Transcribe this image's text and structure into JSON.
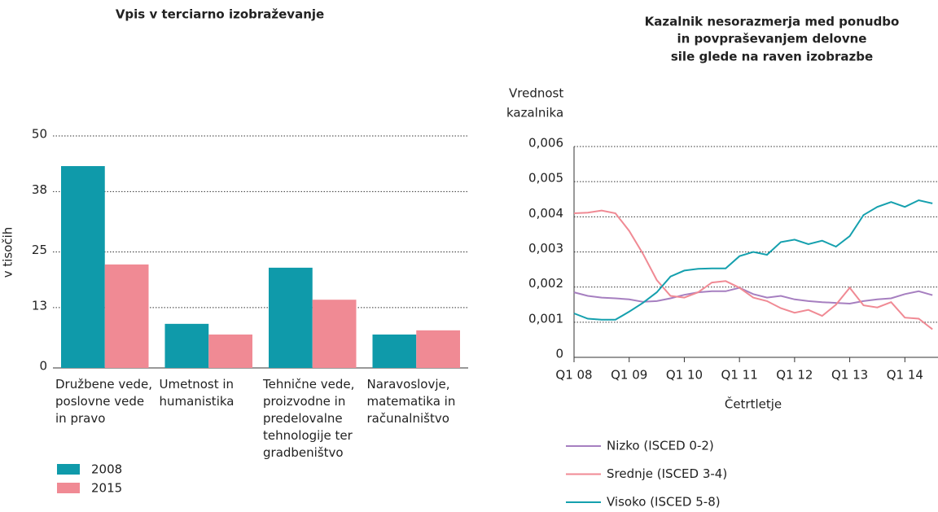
{
  "chart_data": [
    {
      "type": "bar",
      "title": "Vpis v terciarno izobraževanje",
      "y_label": "v tisočih",
      "categories": [
        "Družbene vede, poslovne vede in pravo",
        "Umetnost in humanistika",
        "Tehnične vede, proizvodne in predelovalne tehnologije ter gradbeništvo",
        "Naravoslovje, matematika in računalništvo"
      ],
      "series": [
        {
          "name": "2008",
          "color": "#0f9aaa",
          "values": [
            43.5,
            9.5,
            21.6,
            7.2
          ]
        },
        {
          "name": "2015",
          "color": "#f08a94",
          "values": [
            22.3,
            7.2,
            14.7,
            8.1
          ]
        }
      ],
      "ylim": [
        0,
        50
      ],
      "yticks": [
        0,
        13,
        25,
        38,
        50
      ],
      "grid": true
    },
    {
      "type": "line",
      "title": [
        "Kazalnik nesorazmerja med ponudbo",
        "in povpraševanjem delovne",
        "sile glede na raven izobrazbe"
      ],
      "y_label": [
        "Vrednost",
        "kazalnika"
      ],
      "x_label": "Četrtletje",
      "categories": [
        "Q1 08",
        null,
        null,
        null,
        "Q1 09",
        null,
        null,
        null,
        "Q1 10",
        null,
        null,
        null,
        "Q1 11",
        null,
        null,
        null,
        "Q1 12",
        null,
        null,
        null,
        "Q1 13",
        null,
        null,
        null,
        "Q1 14",
        null,
        null
      ],
      "series": [
        {
          "name": "Nizko (ISCED 0-2)",
          "color": "#a67fc0",
          "values": [
            0.00185,
            0.00175,
            0.0017,
            0.00168,
            0.00165,
            0.00158,
            0.0016,
            0.00168,
            0.00178,
            0.00185,
            0.00188,
            0.00188,
            0.00198,
            0.0018,
            0.0017,
            0.00175,
            0.00165,
            0.0016,
            0.00157,
            0.00155,
            0.00153,
            0.0016,
            0.00165,
            0.00168,
            0.0018,
            0.00188,
            0.00177
          ]
        },
        {
          "name": "Srednje (ISCED 3-4)",
          "color": "#f08a94",
          "values": [
            0.0041,
            0.00412,
            0.00418,
            0.0041,
            0.0036,
            0.00295,
            0.0022,
            0.00175,
            0.0017,
            0.00185,
            0.00213,
            0.00217,
            0.00198,
            0.0017,
            0.0016,
            0.0014,
            0.00127,
            0.00135,
            0.00118,
            0.0015,
            0.00198,
            0.00148,
            0.00142,
            0.00157,
            0.00113,
            0.0011,
            0.0008
          ]
        },
        {
          "name": "Visoko (ISCED 5-8)",
          "color": "#15a0ae",
          "values": [
            0.00125,
            0.0011,
            0.00107,
            0.00107,
            0.0013,
            0.00155,
            0.00185,
            0.0023,
            0.00247,
            0.00252,
            0.00253,
            0.00253,
            0.00288,
            0.003,
            0.00292,
            0.00328,
            0.00335,
            0.00322,
            0.00332,
            0.00315,
            0.00345,
            0.00405,
            0.00428,
            0.00442,
            0.00428,
            0.00447,
            0.00438
          ]
        }
      ],
      "ylim": [
        0,
        0.006
      ],
      "yticks": [
        0,
        {
          "value": 0.001,
          "label": "0,001"
        },
        {
          "value": 0.002,
          "label": "0,002"
        },
        {
          "value": 0.003,
          "label": "0,003"
        },
        {
          "value": 0.004,
          "label": "0,004"
        },
        {
          "value": 0.005,
          "label": "0,005"
        },
        {
          "value": 0.006,
          "label": "0,006"
        }
      ],
      "grid": true
    }
  ]
}
